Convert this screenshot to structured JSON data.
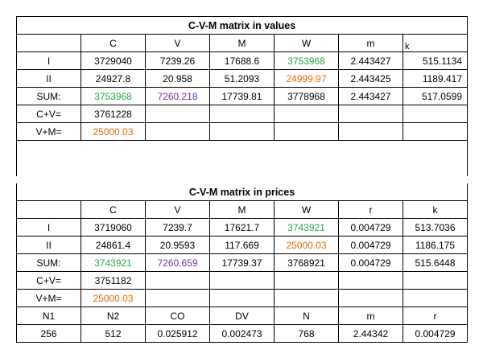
{
  "values": {
    "title": "C-V-M matrix in values",
    "headers": [
      "",
      "C",
      "V",
      "M",
      "W",
      "m",
      "k"
    ],
    "rows": [
      {
        "label": "I",
        "cells": [
          "3729040",
          "7239.26",
          "17688.6",
          "3753968",
          "2.443427",
          "515.1134"
        ]
      },
      {
        "label": "II",
        "cells": [
          "24927.8",
          "20.958",
          "51.2093",
          "24999.97",
          "2.443425",
          "1189.417"
        ]
      },
      {
        "label": "SUM:",
        "cells": [
          "3753968",
          "7260.218",
          "17739.81",
          "3778968",
          "2.443427",
          "517.0599"
        ]
      },
      {
        "label": "C+V=",
        "cells": [
          "3761228",
          "",
          "",
          "",
          "",
          ""
        ]
      },
      {
        "label": "V+M=",
        "cells": [
          "25000.03",
          "",
          "",
          "",
          "",
          ""
        ]
      }
    ]
  },
  "prices": {
    "title": "C-V-M matrix in prices",
    "headers": [
      "",
      "C",
      "V",
      "M",
      "W",
      "r",
      "k"
    ],
    "rows": [
      {
        "label": "I",
        "cells": [
          "3719060",
          "7239.7",
          "17621.7",
          "3743921",
          "0.004729",
          "513.7036"
        ]
      },
      {
        "label": "II",
        "cells": [
          "24861.4",
          "20.9593",
          "117.669",
          "25000.03",
          "0.004729",
          "1186.175"
        ]
      },
      {
        "label": "SUM:",
        "cells": [
          "3743921",
          "7260.659",
          "17739.37",
          "3768921",
          "0.004729",
          "515.6448"
        ]
      },
      {
        "label": "C+V=",
        "cells": [
          "3751182",
          "",
          "",
          "",
          "",
          ""
        ]
      },
      {
        "label": "V+M=",
        "cells": [
          "25000.03",
          "",
          "",
          "",
          "",
          ""
        ]
      }
    ],
    "params_headers": [
      "N1",
      "N2",
      "CO",
      "DV",
      "N",
      "m",
      "r"
    ],
    "params_values": [
      "256",
      "512",
      "0.025912",
      "0.002473",
      "768",
      "2.44342",
      "0.004729"
    ]
  },
  "colors": {
    "green": "#27a84a",
    "purple": "#7030a0",
    "orange": "#e36c0a"
  }
}
